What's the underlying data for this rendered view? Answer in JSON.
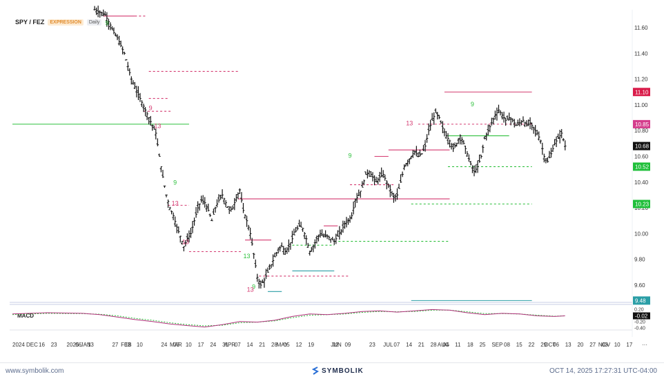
{
  "header": {
    "symbol": "SPY / FEZ",
    "badge_expression": "EXPRESSION",
    "badge_interval": "Daily"
  },
  "indicator": {
    "name": "MACD"
  },
  "footer": {
    "url": "www.symbolik.com",
    "brand": "SYMBOLIK",
    "timestamp": "OCT 14, 2025 17:27:31 UTC-04:00"
  },
  "colors": {
    "up": "#111111",
    "support": "#2bbf3a",
    "resistance": "#d4386f",
    "teal": "#2a9ea6"
  },
  "chart_data": {
    "type": "bar",
    "y_axis": {
      "range": [
        9.48,
        11.72
      ],
      "ticks": [
        "11.60",
        "11.40",
        "11.20",
        "11.00",
        "10.80",
        "10.60",
        "10.40",
        "10.20",
        "10.00",
        "9.80",
        "9.60"
      ]
    },
    "price_tags": [
      {
        "label": "11.10",
        "value": 11.1,
        "color": "#d91c4a"
      },
      {
        "label": "10.85",
        "value": 10.85,
        "color": "#d43d8c"
      },
      {
        "label": "10.68",
        "value": 10.68,
        "color": "#111111"
      },
      {
        "label": "10.52",
        "value": 10.52,
        "color": "#1fbf3a"
      },
      {
        "label": "10.23",
        "value": 10.23,
        "color": "#1fbf3a"
      },
      {
        "label": "9.48",
        "value": 9.48,
        "color": "#2a9ea6"
      }
    ],
    "macd_axis": {
      "ticks": [
        "0.20",
        "-0.02",
        "-0.20",
        "-0.40"
      ],
      "current": "-0.02",
      "range": [
        -0.45,
        0.3
      ]
    },
    "x_axis": {
      "ticks": [
        {
          "label": "2024 DEC",
          "d": 0
        },
        {
          "label": "16",
          "d": 15
        },
        {
          "label": "23",
          "d": 22
        },
        {
          "label": "2025 JAN",
          "d": 31
        },
        {
          "label": "06",
          "d": 36
        },
        {
          "label": "13",
          "d": 43
        },
        {
          "label": "27",
          "d": 57
        },
        {
          "label": "FEB",
          "d": 62
        },
        {
          "label": "03",
          "d": 64
        },
        {
          "label": "10",
          "d": 71
        },
        {
          "label": "24",
          "d": 85
        },
        {
          "label": "MAR",
          "d": 90
        },
        {
          "label": "03",
          "d": 92
        },
        {
          "label": "10",
          "d": 99
        },
        {
          "label": "17",
          "d": 106
        },
        {
          "label": "24",
          "d": 113
        },
        {
          "label": "APR",
          "d": 121
        },
        {
          "label": "31",
          "d": 120
        },
        {
          "label": "07",
          "d": 127
        },
        {
          "label": "14",
          "d": 134
        },
        {
          "label": "21",
          "d": 141
        },
        {
          "label": "28",
          "d": 148
        },
        {
          "label": "MAY",
          "d": 151
        },
        {
          "label": "05",
          "d": 155
        },
        {
          "label": "12",
          "d": 162
        },
        {
          "label": "19",
          "d": 169
        },
        {
          "label": "JUN",
          "d": 182
        },
        {
          "label": "02",
          "d": 183
        },
        {
          "label": "09",
          "d": 190
        },
        {
          "label": "23",
          "d": 204
        },
        {
          "label": "JUL",
          "d": 212
        },
        {
          "label": "07",
          "d": 218
        },
        {
          "label": "14",
          "d": 225
        },
        {
          "label": "21",
          "d": 232
        },
        {
          "label": "28",
          "d": 239
        },
        {
          "label": "AUG",
          "d": 243
        },
        {
          "label": "04",
          "d": 246
        },
        {
          "label": "11",
          "d": 253
        },
        {
          "label": "18",
          "d": 260
        },
        {
          "label": "25",
          "d": 267
        },
        {
          "label": "SEP",
          "d": 274
        },
        {
          "label": "08",
          "d": 281
        },
        {
          "label": "15",
          "d": 288
        },
        {
          "label": "22",
          "d": 295
        },
        {
          "label": "29",
          "d": 302
        },
        {
          "label": "OCT",
          "d": 304
        },
        {
          "label": "06",
          "d": 309
        },
        {
          "label": "13",
          "d": 316
        },
        {
          "label": "20",
          "d": 323
        },
        {
          "label": "27",
          "d": 330
        },
        {
          "label": "NOV",
          "d": 335
        },
        {
          "label": "03",
          "d": 337
        },
        {
          "label": "10",
          "d": 344
        },
        {
          "label": "17",
          "d": 351
        },
        {
          "label": "···",
          "d": 361
        }
      ]
    },
    "price_path": [
      [
        47,
        11.74
      ],
      [
        50,
        11.72
      ],
      [
        53,
        11.7
      ],
      [
        56,
        11.62
      ],
      [
        58,
        11.56
      ],
      [
        60,
        11.52
      ],
      [
        62,
        11.46
      ],
      [
        64,
        11.4
      ],
      [
        66,
        11.3
      ],
      [
        68,
        11.2
      ],
      [
        70,
        11.14
      ],
      [
        72,
        11.08
      ],
      [
        74,
        11.02
      ],
      [
        76,
        10.96
      ],
      [
        78,
        10.9
      ],
      [
        80,
        10.84
      ],
      [
        82,
        10.78
      ],
      [
        84,
        10.6
      ],
      [
        86,
        10.44
      ],
      [
        88,
        10.3
      ],
      [
        90,
        10.2
      ],
      [
        92,
        10.14
      ],
      [
        94,
        10.05
      ],
      [
        96,
        9.98
      ],
      [
        98,
        9.9
      ],
      [
        100,
        9.96
      ],
      [
        102,
        10.0
      ],
      [
        104,
        10.1
      ],
      [
        106,
        10.2
      ],
      [
        108,
        10.26
      ],
      [
        110,
        10.24
      ],
      [
        112,
        10.18
      ],
      [
        114,
        10.1
      ],
      [
        116,
        10.2
      ],
      [
        118,
        10.26
      ],
      [
        120,
        10.3
      ],
      [
        122,
        10.24
      ],
      [
        124,
        10.18
      ],
      [
        126,
        10.2
      ],
      [
        128,
        10.28
      ],
      [
        130,
        10.34
      ],
      [
        132,
        10.18
      ],
      [
        134,
        10.1
      ],
      [
        136,
        10.0
      ],
      [
        138,
        9.84
      ],
      [
        140,
        9.66
      ],
      [
        142,
        9.6
      ],
      [
        144,
        9.64
      ],
      [
        146,
        9.7
      ],
      [
        148,
        9.76
      ],
      [
        150,
        9.82
      ],
      [
        152,
        9.88
      ],
      [
        154,
        9.9
      ],
      [
        156,
        9.86
      ],
      [
        158,
        9.9
      ],
      [
        160,
        9.96
      ],
      [
        162,
        10.02
      ],
      [
        164,
        10.06
      ],
      [
        166,
        10.04
      ],
      [
        168,
        9.96
      ],
      [
        170,
        9.86
      ],
      [
        172,
        9.9
      ],
      [
        174,
        9.96
      ],
      [
        176,
        10.0
      ],
      [
        178,
        9.98
      ],
      [
        180,
        9.98
      ],
      [
        182,
        9.96
      ],
      [
        184,
        9.94
      ],
      [
        186,
        9.98
      ],
      [
        188,
        10.02
      ],
      [
        190,
        10.08
      ],
      [
        192,
        10.1
      ],
      [
        194,
        10.14
      ],
      [
        196,
        10.26
      ],
      [
        198,
        10.3
      ],
      [
        200,
        10.36
      ],
      [
        202,
        10.46
      ],
      [
        204,
        10.48
      ],
      [
        206,
        10.44
      ],
      [
        208,
        10.4
      ],
      [
        210,
        10.44
      ],
      [
        212,
        10.46
      ],
      [
        214,
        10.4
      ],
      [
        216,
        10.34
      ],
      [
        218,
        10.28
      ],
      [
        220,
        10.3
      ],
      [
        222,
        10.4
      ],
      [
        224,
        10.52
      ],
      [
        226,
        10.56
      ],
      [
        228,
        10.6
      ],
      [
        230,
        10.64
      ],
      [
        232,
        10.6
      ],
      [
        234,
        10.62
      ],
      [
        236,
        10.68
      ],
      [
        238,
        10.8
      ],
      [
        240,
        10.88
      ],
      [
        242,
        10.94
      ],
      [
        244,
        10.9
      ],
      [
        246,
        10.82
      ],
      [
        248,
        10.76
      ],
      [
        250,
        10.72
      ],
      [
        252,
        10.66
      ],
      [
        254,
        10.7
      ],
      [
        256,
        10.76
      ],
      [
        258,
        10.7
      ],
      [
        260,
        10.62
      ],
      [
        262,
        10.54
      ],
      [
        264,
        10.48
      ],
      [
        266,
        10.52
      ],
      [
        268,
        10.6
      ],
      [
        270,
        10.74
      ],
      [
        272,
        10.8
      ],
      [
        274,
        10.86
      ],
      [
        276,
        10.92
      ],
      [
        278,
        10.96
      ],
      [
        280,
        10.92
      ],
      [
        282,
        10.88
      ],
      [
        284,
        10.9
      ],
      [
        286,
        10.88
      ],
      [
        288,
        10.84
      ],
      [
        290,
        10.86
      ],
      [
        292,
        10.88
      ],
      [
        294,
        10.84
      ],
      [
        296,
        10.86
      ],
      [
        298,
        10.82
      ],
      [
        300,
        10.78
      ],
      [
        302,
        10.72
      ],
      [
        304,
        10.6
      ],
      [
        306,
        10.56
      ],
      [
        308,
        10.62
      ],
      [
        310,
        10.7
      ],
      [
        312,
        10.74
      ],
      [
        314,
        10.78
      ],
      [
        316,
        10.68
      ]
    ],
    "levels": [
      {
        "y": 11.69,
        "d1": 52,
        "d2": 70,
        "color": "resistance",
        "dash": false
      },
      {
        "y": 11.69,
        "d1": 70,
        "d2": 76,
        "color": "resistance",
        "dash": true
      },
      {
        "y": 11.26,
        "d1": 78,
        "d2": 129,
        "color": "resistance",
        "dash": true
      },
      {
        "y": 11.05,
        "d1": 78,
        "d2": 89,
        "color": "resistance",
        "dash": true
      },
      {
        "y": 10.95,
        "d1": 75,
        "d2": 91,
        "color": "resistance",
        "dash": true
      },
      {
        "y": 10.85,
        "d1": 0,
        "d2": 101,
        "color": "support",
        "dash": false
      },
      {
        "y": 10.27,
        "d1": 129,
        "d2": 250,
        "color": "resistance",
        "dash": false
      },
      {
        "y": 10.22,
        "d1": 89,
        "d2": 101,
        "color": "resistance",
        "dash": true
      },
      {
        "y": 9.86,
        "d1": 101,
        "d2": 131,
        "color": "resistance",
        "dash": true
      },
      {
        "y": 9.95,
        "d1": 133,
        "d2": 148,
        "color": "resistance",
        "dash": false
      },
      {
        "y": 9.67,
        "d1": 141,
        "d2": 192,
        "color": "resistance",
        "dash": true
      },
      {
        "y": 9.55,
        "d1": 146,
        "d2": 154,
        "color": "teal",
        "dash": false
      },
      {
        "y": 9.71,
        "d1": 160,
        "d2": 184,
        "color": "teal",
        "dash": false
      },
      {
        "y": 9.91,
        "d1": 160,
        "d2": 184,
        "color": "support",
        "dash": true
      },
      {
        "y": 9.94,
        "d1": 184,
        "d2": 250,
        "color": "support",
        "dash": true
      },
      {
        "y": 10.06,
        "d1": 178,
        "d2": 186,
        "color": "resistance",
        "dash": false
      },
      {
        "y": 10.38,
        "d1": 193,
        "d2": 218,
        "color": "resistance",
        "dash": true
      },
      {
        "y": 10.6,
        "d1": 207,
        "d2": 215,
        "color": "resistance",
        "dash": false
      },
      {
        "y": 10.65,
        "d1": 215,
        "d2": 250,
        "color": "resistance",
        "dash": false
      },
      {
        "y": 10.85,
        "d1": 232,
        "d2": 297,
        "color": "resistance",
        "dash": true
      },
      {
        "y": 11.1,
        "d1": 247,
        "d2": 297,
        "color": "resistance",
        "dash": false
      },
      {
        "y": 10.76,
        "d1": 249,
        "d2": 284,
        "color": "support",
        "dash": false
      },
      {
        "y": 10.52,
        "d1": 249,
        "d2": 297,
        "color": "support",
        "dash": true
      },
      {
        "y": 10.23,
        "d1": 228,
        "d2": 297,
        "color": "support",
        "dash": true
      },
      {
        "y": 9.48,
        "d1": 228,
        "d2": 297,
        "color": "teal",
        "dash": false
      }
    ],
    "signals": [
      {
        "label": "9",
        "d": 54,
        "y": 11.62,
        "color": "support"
      },
      {
        "label": "13",
        "d": 83,
        "y": 10.82,
        "color": "resistance"
      },
      {
        "label": "9",
        "d": 79,
        "y": 10.96,
        "color": "resistance"
      },
      {
        "label": "9",
        "d": 93,
        "y": 10.38,
        "color": "support"
      },
      {
        "label": "13",
        "d": 93,
        "y": 10.22,
        "color": "resistance"
      },
      {
        "label": "13",
        "d": 99,
        "y": 9.92,
        "color": "resistance"
      },
      {
        "label": "13",
        "d": 134,
        "y": 9.81,
        "color": "support"
      },
      {
        "label": "9",
        "d": 138,
        "y": 9.57,
        "color": "support"
      },
      {
        "label": "13",
        "d": 136,
        "y": 9.55,
        "color": "resistance"
      },
      {
        "label": "9",
        "d": 193,
        "y": 10.59,
        "color": "support"
      },
      {
        "label": "13",
        "d": 227,
        "y": 10.84,
        "color": "resistance"
      },
      {
        "label": "9",
        "d": 263,
        "y": 10.99,
        "color": "support"
      }
    ],
    "macd": {
      "line": [
        [
          0,
          0.04
        ],
        [
          20,
          0.08
        ],
        [
          40,
          0.06
        ],
        [
          50,
          0.02
        ],
        [
          60,
          -0.06
        ],
        [
          70,
          -0.14
        ],
        [
          80,
          -0.2
        ],
        [
          90,
          -0.28
        ],
        [
          100,
          -0.33
        ],
        [
          110,
          -0.38
        ],
        [
          120,
          -0.3
        ],
        [
          130,
          -0.2
        ],
        [
          140,
          -0.22
        ],
        [
          150,
          -0.16
        ],
        [
          160,
          -0.04
        ],
        [
          170,
          0.04
        ],
        [
          180,
          0.02
        ],
        [
          190,
          0.06
        ],
        [
          200,
          0.12
        ],
        [
          210,
          0.14
        ],
        [
          220,
          0.1
        ],
        [
          230,
          0.14
        ],
        [
          240,
          0.18
        ],
        [
          250,
          0.16
        ],
        [
          260,
          0.08
        ],
        [
          270,
          0.02
        ],
        [
          280,
          0.06
        ],
        [
          290,
          0.04
        ],
        [
          300,
          -0.02
        ],
        [
          310,
          -0.04
        ],
        [
          316,
          -0.02
        ]
      ],
      "signal": [
        [
          0,
          0.02
        ],
        [
          20,
          0.06
        ],
        [
          40,
          0.05
        ],
        [
          50,
          0.03
        ],
        [
          60,
          -0.02
        ],
        [
          70,
          -0.1
        ],
        [
          80,
          -0.16
        ],
        [
          90,
          -0.24
        ],
        [
          100,
          -0.3
        ],
        [
          110,
          -0.34
        ],
        [
          120,
          -0.32
        ],
        [
          130,
          -0.24
        ],
        [
          140,
          -0.22
        ],
        [
          150,
          -0.18
        ],
        [
          160,
          -0.08
        ],
        [
          170,
          0.0
        ],
        [
          180,
          0.02
        ],
        [
          190,
          0.04
        ],
        [
          200,
          0.09
        ],
        [
          210,
          0.12
        ],
        [
          220,
          0.11
        ],
        [
          230,
          0.12
        ],
        [
          240,
          0.16
        ],
        [
          250,
          0.16
        ],
        [
          260,
          0.11
        ],
        [
          270,
          0.05
        ],
        [
          280,
          0.05
        ],
        [
          290,
          0.04
        ],
        [
          300,
          0.0
        ],
        [
          310,
          -0.03
        ],
        [
          316,
          -0.02
        ]
      ]
    }
  }
}
